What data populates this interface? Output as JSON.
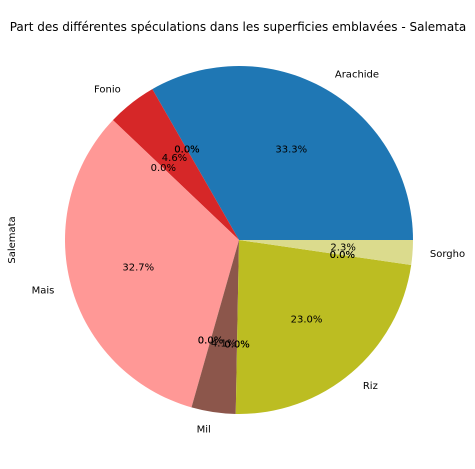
{
  "chart_data": {
    "type": "pie",
    "title": "Part des différentes spéculations dans les superficies emblavées - Salemata",
    "ylabel": "Salemata",
    "slices": [
      {
        "label": "Arachide",
        "value": 33.3,
        "pct_label": "33.3%",
        "color": "#1f77b4"
      },
      {
        "label": "",
        "value": 0.0,
        "pct_label": "0.0%",
        "color": "#ff7f0e"
      },
      {
        "label": "",
        "value": 0.0,
        "pct_label": "0.0%",
        "color": "#2ca02c"
      },
      {
        "label": "Fonio",
        "value": 4.6,
        "pct_label": "4.6%",
        "color": "#d62728"
      },
      {
        "label": "",
        "value": 0.0,
        "pct_label": "0.0%",
        "color": "#9467bd"
      },
      {
        "label": "Mais",
        "value": 32.7,
        "pct_label": "32.7%",
        "color": "#ff9896"
      },
      {
        "label": "",
        "value": 0.0,
        "pct_label": "0.0%",
        "color": "#aec7e8"
      },
      {
        "label": "",
        "value": 0.0,
        "pct_label": "0.0%",
        "color": "#ffbb78"
      },
      {
        "label": "Mil",
        "value": 4.1,
        "pct_label": "4.1%",
        "color": "#8c564b"
      },
      {
        "label": "",
        "value": 0.0,
        "pct_label": "0.0%",
        "color": "#e377c2"
      },
      {
        "label": "",
        "value": 0.0,
        "pct_label": "0.0%",
        "color": "#7f7f7f"
      },
      {
        "label": "Riz",
        "value": 23.0,
        "pct_label": "23.0%",
        "color": "#bcbd22"
      },
      {
        "label": "",
        "value": 0.0,
        "pct_label": "0.0%",
        "color": "#17becf"
      },
      {
        "label": "",
        "value": 0.0,
        "pct_label": "0.0%",
        "color": "#98df8a"
      },
      {
        "label": "Sorgho",
        "value": 2.3,
        "pct_label": "2.3%",
        "color": "#dbdb8d"
      }
    ]
  }
}
